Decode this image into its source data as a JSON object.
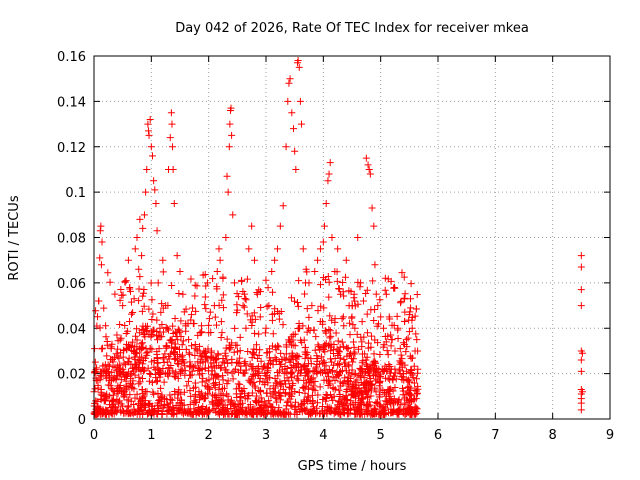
{
  "chart_data": {
    "type": "scatter",
    "title": "Day 042 of 2026, Rate Of TEC Index for receiver mkea",
    "xlabel": "GPS time / hours",
    "ylabel": "ROTI / TECUs",
    "xlim": [
      0,
      9
    ],
    "ylim": [
      0,
      0.16
    ],
    "xticks": [
      "0",
      "1",
      "2",
      "3",
      "4",
      "5",
      "6",
      "7",
      "8",
      "9"
    ],
    "yticks": [
      "0",
      "0.02",
      "0.04",
      "0.06",
      "0.08",
      "0.1",
      "0.12",
      "0.14",
      "0.16"
    ],
    "grid": true,
    "marker": "plus",
    "color": "#ff0000",
    "series": [
      {
        "points": [
          [
            0.0,
            0.012
          ],
          [
            0.01,
            0.031
          ],
          [
            0.02,
            0.021
          ],
          [
            0.03,
            0.008
          ],
          [
            0.04,
            0.017
          ],
          [
            0.05,
            0.041
          ],
          [
            0.06,
            0.005
          ],
          [
            0.08,
            0.052
          ],
          [
            0.1,
            0.071
          ],
          [
            0.11,
            0.083
          ],
          [
            0.12,
            0.085
          ],
          [
            0.13,
            0.068
          ],
          [
            0.14,
            0.078
          ],
          [
            0.2,
            0.01
          ],
          [
            0.22,
            0.022
          ],
          [
            0.25,
            0.015
          ],
          [
            0.3,
            0.031
          ],
          [
            0.33,
            0.008
          ],
          [
            0.4,
            0.037
          ],
          [
            0.45,
            0.02
          ],
          [
            0.5,
            0.05
          ],
          [
            0.53,
            0.012
          ],
          [
            0.56,
            0.061
          ],
          [
            0.6,
            0.07
          ],
          [
            0.62,
            0.043
          ],
          [
            0.66,
            0.02
          ],
          [
            0.7,
            0.053
          ],
          [
            0.72,
            0.075
          ],
          [
            0.75,
            0.08
          ],
          [
            0.78,
            0.066
          ],
          [
            0.8,
            0.088
          ],
          [
            0.83,
            0.072
          ],
          [
            0.85,
            0.084
          ],
          [
            0.88,
            0.09
          ],
          [
            0.9,
            0.1
          ],
          [
            0.92,
            0.11
          ],
          [
            0.94,
            0.13
          ],
          [
            0.95,
            0.127
          ],
          [
            0.96,
            0.125
          ],
          [
            0.98,
            0.132
          ],
          [
            1.0,
            0.12
          ],
          [
            1.02,
            0.116
          ],
          [
            1.04,
            0.105
          ],
          [
            1.06,
            0.101
          ],
          [
            1.08,
            0.095
          ],
          [
            1.1,
            0.083
          ],
          [
            1.12,
            0.06
          ],
          [
            1.15,
            0.04
          ],
          [
            1.2,
            0.07
          ],
          [
            1.25,
            0.05
          ],
          [
            1.3,
            0.11
          ],
          [
            1.33,
            0.124
          ],
          [
            1.35,
            0.135
          ],
          [
            1.36,
            0.13
          ],
          [
            1.37,
            0.12
          ],
          [
            1.38,
            0.11
          ],
          [
            1.4,
            0.095
          ],
          [
            1.45,
            0.072
          ],
          [
            1.5,
            0.065
          ],
          [
            1.55,
            0.055
          ],
          [
            1.6,
            0.042
          ],
          [
            1.65,
            0.035
          ],
          [
            1.7,
            0.046
          ],
          [
            1.8,
            0.03
          ],
          [
            1.85,
            0.038
          ],
          [
            1.9,
            0.025
          ],
          [
            2.0,
            0.038
          ],
          [
            2.05,
            0.03
          ],
          [
            2.1,
            0.05
          ],
          [
            2.15,
            0.065
          ],
          [
            2.18,
            0.075
          ],
          [
            2.2,
            0.07
          ],
          [
            2.25,
            0.062
          ],
          [
            2.3,
            0.08
          ],
          [
            2.32,
            0.107
          ],
          [
            2.34,
            0.1
          ],
          [
            2.36,
            0.12
          ],
          [
            2.37,
            0.13
          ],
          [
            2.38,
            0.136
          ],
          [
            2.39,
            0.137
          ],
          [
            2.4,
            0.125
          ],
          [
            2.42,
            0.09
          ],
          [
            2.45,
            0.06
          ],
          [
            2.5,
            0.048
          ],
          [
            2.55,
            0.036
          ],
          [
            2.6,
            0.05
          ],
          [
            2.65,
            0.04
          ],
          [
            2.7,
            0.075
          ],
          [
            2.75,
            0.085
          ],
          [
            2.8,
            0.07
          ],
          [
            2.85,
            0.055
          ],
          [
            2.9,
            0.045
          ],
          [
            3.0,
            0.04
          ],
          [
            3.05,
            0.05
          ],
          [
            3.1,
            0.065
          ],
          [
            3.15,
            0.07
          ],
          [
            3.2,
            0.075
          ],
          [
            3.25,
            0.085
          ],
          [
            3.3,
            0.094
          ],
          [
            3.35,
            0.12
          ],
          [
            3.38,
            0.14
          ],
          [
            3.4,
            0.148
          ],
          [
            3.42,
            0.15
          ],
          [
            3.45,
            0.135
          ],
          [
            3.48,
            0.128
          ],
          [
            3.5,
            0.118
          ],
          [
            3.52,
            0.11
          ],
          [
            3.55,
            0.157
          ],
          [
            3.56,
            0.158
          ],
          [
            3.58,
            0.155
          ],
          [
            3.6,
            0.14
          ],
          [
            3.62,
            0.13
          ],
          [
            3.65,
            0.075
          ],
          [
            3.7,
            0.066
          ],
          [
            3.75,
            0.06
          ],
          [
            3.8,
            0.05
          ],
          [
            3.85,
            0.065
          ],
          [
            3.9,
            0.07
          ],
          [
            3.95,
            0.075
          ],
          [
            4.0,
            0.078
          ],
          [
            4.02,
            0.085
          ],
          [
            4.05,
            0.095
          ],
          [
            4.08,
            0.105
          ],
          [
            4.1,
            0.108
          ],
          [
            4.12,
            0.113
          ],
          [
            4.15,
            0.08
          ],
          [
            4.2,
            0.065
          ],
          [
            4.25,
            0.075
          ],
          [
            4.3,
            0.055
          ],
          [
            4.35,
            0.045
          ],
          [
            4.4,
            0.07
          ],
          [
            4.45,
            0.05
          ],
          [
            4.5,
            0.045
          ],
          [
            4.55,
            0.04
          ],
          [
            4.6,
            0.08
          ],
          [
            4.65,
            0.06
          ],
          [
            4.7,
            0.052
          ],
          [
            4.75,
            0.115
          ],
          [
            4.78,
            0.112
          ],
          [
            4.8,
            0.11
          ],
          [
            4.82,
            0.108
          ],
          [
            4.85,
            0.093
          ],
          [
            4.88,
            0.085
          ],
          [
            4.9,
            0.068
          ],
          [
            4.95,
            0.05
          ],
          [
            5.0,
            0.045
          ],
          [
            5.05,
            0.04
          ],
          [
            5.1,
            0.055
          ],
          [
            5.15,
            0.045
          ],
          [
            5.2,
            0.035
          ],
          [
            5.25,
            0.03
          ],
          [
            5.3,
            0.04
          ],
          [
            5.35,
            0.025
          ],
          [
            5.4,
            0.02
          ],
          [
            5.45,
            0.035
          ],
          [
            5.5,
            0.046
          ],
          [
            5.52,
            0.053
          ],
          [
            5.55,
            0.04
          ],
          [
            5.6,
            0.03
          ],
          [
            5.63,
            0.035
          ],
          [
            8.5,
            0.072
          ],
          [
            8.5,
            0.067
          ],
          [
            8.5,
            0.057
          ],
          [
            8.5,
            0.05
          ],
          [
            8.5,
            0.03
          ],
          [
            8.5,
            0.026
          ],
          [
            8.5,
            0.021
          ],
          [
            8.5,
            0.013
          ],
          [
            8.5,
            0.011
          ],
          [
            8.5,
            0.009
          ],
          [
            8.5,
            0.007
          ],
          [
            8.5,
            0.004
          ],
          [
            8.52,
            0.029
          ],
          [
            8.52,
            0.012
          ]
        ],
        "dense_band": {
          "x_range": [
            0.0,
            5.65
          ],
          "typical_range": [
            0.002,
            0.03
          ],
          "upper_envelope": [
            [
              0.0,
              0.022
            ],
            [
              0.5,
              0.03
            ],
            [
              1.0,
              0.045
            ],
            [
              1.5,
              0.04
            ],
            [
              2.0,
              0.03
            ],
            [
              2.5,
              0.035
            ],
            [
              3.0,
              0.03
            ],
            [
              3.5,
              0.04
            ],
            [
              4.0,
              0.045
            ],
            [
              4.5,
              0.03
            ],
            [
              5.0,
              0.025
            ],
            [
              5.65,
              0.025
            ]
          ]
        }
      }
    ]
  }
}
